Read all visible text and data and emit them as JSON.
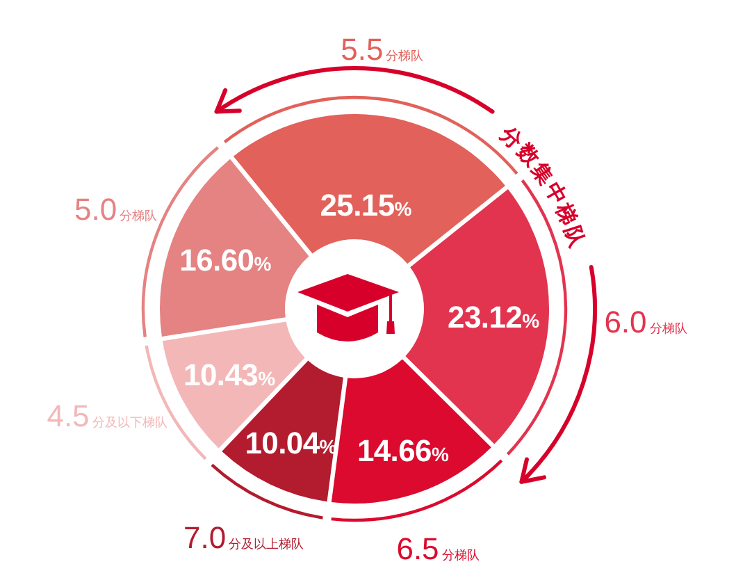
{
  "chart_data": {
    "type": "donut",
    "categories": [
      "4.5分及以下梯队",
      "5.0分梯队",
      "5.5分梯队",
      "6.0分梯队",
      "6.5分梯队",
      "7.0分及以上梯队"
    ],
    "values": [
      10.43,
      16.6,
      25.15,
      23.12,
      14.66,
      10.04
    ],
    "value_labels": [
      "10.43%",
      "16.60%",
      "25.15%",
      "23.12%",
      "14.66%",
      "10.04%"
    ],
    "colors": [
      "#f3b7b7",
      "#e58282",
      "#e2615a",
      "#e2344f",
      "#db0a2e",
      "#b31b2e"
    ],
    "annotations": [
      "分数集中梯队"
    ]
  }
}
